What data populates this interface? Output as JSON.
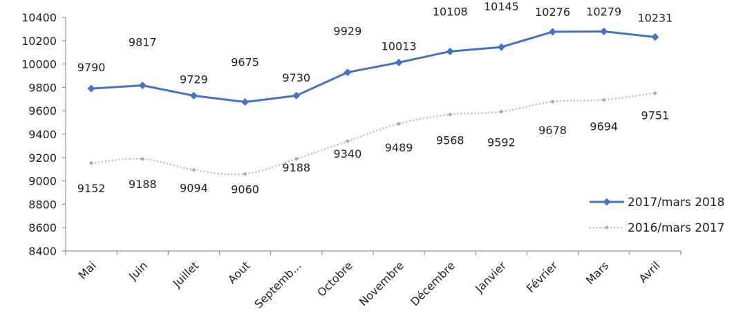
{
  "chart_data": {
    "type": "line",
    "title": "",
    "xlabel": "",
    "ylabel": "",
    "categories": [
      "Mai",
      "Juin",
      "Juillet",
      "Aout",
      "Septemb...",
      "Octobre",
      "Novembre",
      "Décembre",
      "Janvier",
      "Février",
      "Mars",
      "Avril"
    ],
    "ylim": [
      8400,
      10400
    ],
    "yticks": [
      8400,
      8600,
      8800,
      9000,
      9200,
      9400,
      9600,
      9800,
      10000,
      10200,
      10400
    ],
    "grid": false,
    "legend_position": "right",
    "series": [
      {
        "name": "2017/mars 2018",
        "color": "#4472c4",
        "style": "solid",
        "marker": "diamond",
        "values": [
          9790,
          9817,
          9729,
          9675,
          9730,
          9929,
          10013,
          10108,
          10145,
          10276,
          10279,
          10231
        ]
      },
      {
        "name": "2016/mars 2017",
        "color": "#a9bde4",
        "style": "dotted",
        "marker": "diamond-small",
        "values": [
          9152,
          9188,
          9094,
          9060,
          9188,
          9340,
          9489,
          9568,
          9592,
          9678,
          9694,
          9751
        ]
      }
    ]
  }
}
